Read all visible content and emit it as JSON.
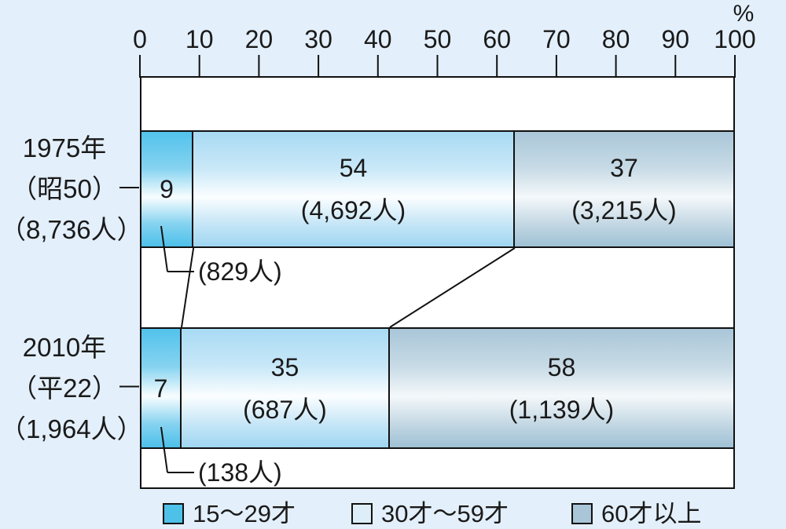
{
  "background_color": "#e3effa",
  "text_color": "#1a1a1a",
  "line_color": "#111111",
  "chart_data": {
    "type": "bar",
    "stacked": true,
    "orientation": "horizontal",
    "title": "",
    "axis": {
      "unit": "%",
      "min": 0,
      "max": 100,
      "tick_step": 10,
      "position": "top",
      "tick_labels": [
        "0",
        "10",
        "20",
        "30",
        "40",
        "50",
        "60",
        "70",
        "80",
        "90",
        "100"
      ]
    },
    "categories": [
      "15〜29才",
      "30才〜59才",
      "60才以上"
    ],
    "legend": {
      "position": "bottom",
      "items": [
        {
          "label": "15〜29才",
          "color": "#4ec1e9"
        },
        {
          "label": "30才〜59才",
          "color": "#ddeef8"
        },
        {
          "label": "60才以上",
          "color": "#a9c6d8"
        }
      ]
    },
    "segment_gradients": [
      [
        "#52c2ec",
        "#86d3f0",
        "#f8fdff",
        "#86d3f0",
        "#4dc0ea"
      ],
      [
        "#a8daf3",
        "#c9e8f8",
        "#fbfeff",
        "#c6e6f7",
        "#9fd6f1"
      ],
      [
        "#a9c6d8",
        "#c8dbe6",
        "#f4f8fa",
        "#c4d8e4",
        "#9ec1d4"
      ]
    ],
    "rows": [
      {
        "label_lines": [
          "1975年",
          "（昭50）",
          "（8,736人）"
        ],
        "segments": [
          {
            "category": "15〜29才",
            "value": 9,
            "count_label": "(829人)",
            "count_placement": "callout"
          },
          {
            "category": "30才〜59才",
            "value": 54,
            "count_label": "(4,692人)",
            "count_placement": "inside"
          },
          {
            "category": "60才以上",
            "value": 37,
            "count_label": "(3,215人)",
            "count_placement": "inside"
          }
        ]
      },
      {
        "label_lines": [
          "2010年",
          "（平22）",
          "（1,964人）"
        ],
        "segments": [
          {
            "category": "15〜29才",
            "value": 7,
            "count_label": "(138人)",
            "count_placement": "callout"
          },
          {
            "category": "30才〜59才",
            "value": 35,
            "count_label": "(687人)",
            "count_placement": "inside"
          },
          {
            "category": "60才以上",
            "value": 58,
            "count_label": "(1,139人)",
            "count_placement": "inside"
          }
        ]
      }
    ],
    "connectors": [
      {
        "from_row": 0,
        "to_row": 1,
        "after_segment": 0
      },
      {
        "from_row": 0,
        "to_row": 1,
        "after_segment": 1
      }
    ]
  }
}
